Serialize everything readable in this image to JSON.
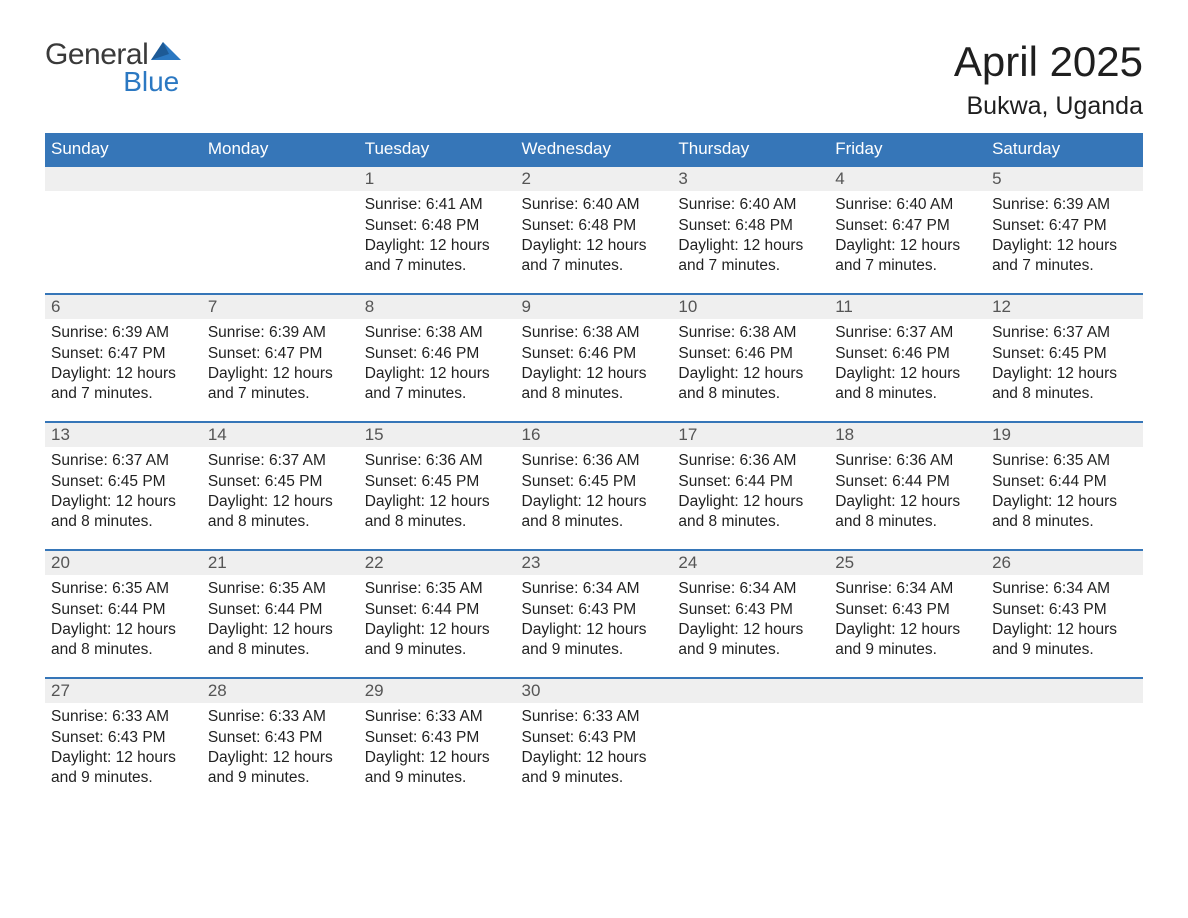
{
  "logo": {
    "word1": "General",
    "word2": "Blue",
    "kite_color": "#2b78c2"
  },
  "title": "April 2025",
  "subtitle": "Bukwa, Uganda",
  "colors": {
    "header_bg": "#3676b8",
    "header_text": "#ffffff",
    "daynum_bg": "#efefef",
    "row_divider": "#3676b8",
    "body_text": "#222222",
    "daynum_text": "#555555",
    "background": "#ffffff"
  },
  "typography": {
    "title_fontsize": 42,
    "subtitle_fontsize": 25,
    "dayheader_fontsize": 17,
    "daynum_fontsize": 17,
    "body_fontsize": 15.5
  },
  "day_headers": [
    "Sunday",
    "Monday",
    "Tuesday",
    "Wednesday",
    "Thursday",
    "Friday",
    "Saturday"
  ],
  "labels": {
    "sunrise": "Sunrise:",
    "sunset": "Sunset:",
    "daylight": "Daylight:"
  },
  "weeks": [
    [
      null,
      null,
      {
        "n": "1",
        "sunrise": "6:41 AM",
        "sunset": "6:48 PM",
        "daylight_l1": "12 hours",
        "daylight_l2": "and 7 minutes."
      },
      {
        "n": "2",
        "sunrise": "6:40 AM",
        "sunset": "6:48 PM",
        "daylight_l1": "12 hours",
        "daylight_l2": "and 7 minutes."
      },
      {
        "n": "3",
        "sunrise": "6:40 AM",
        "sunset": "6:48 PM",
        "daylight_l1": "12 hours",
        "daylight_l2": "and 7 minutes."
      },
      {
        "n": "4",
        "sunrise": "6:40 AM",
        "sunset": "6:47 PM",
        "daylight_l1": "12 hours",
        "daylight_l2": "and 7 minutes."
      },
      {
        "n": "5",
        "sunrise": "6:39 AM",
        "sunset": "6:47 PM",
        "daylight_l1": "12 hours",
        "daylight_l2": "and 7 minutes."
      }
    ],
    [
      {
        "n": "6",
        "sunrise": "6:39 AM",
        "sunset": "6:47 PM",
        "daylight_l1": "12 hours",
        "daylight_l2": "and 7 minutes."
      },
      {
        "n": "7",
        "sunrise": "6:39 AM",
        "sunset": "6:47 PM",
        "daylight_l1": "12 hours",
        "daylight_l2": "and 7 minutes."
      },
      {
        "n": "8",
        "sunrise": "6:38 AM",
        "sunset": "6:46 PM",
        "daylight_l1": "12 hours",
        "daylight_l2": "and 7 minutes."
      },
      {
        "n": "9",
        "sunrise": "6:38 AM",
        "sunset": "6:46 PM",
        "daylight_l1": "12 hours",
        "daylight_l2": "and 8 minutes."
      },
      {
        "n": "10",
        "sunrise": "6:38 AM",
        "sunset": "6:46 PM",
        "daylight_l1": "12 hours",
        "daylight_l2": "and 8 minutes."
      },
      {
        "n": "11",
        "sunrise": "6:37 AM",
        "sunset": "6:46 PM",
        "daylight_l1": "12 hours",
        "daylight_l2": "and 8 minutes."
      },
      {
        "n": "12",
        "sunrise": "6:37 AM",
        "sunset": "6:45 PM",
        "daylight_l1": "12 hours",
        "daylight_l2": "and 8 minutes."
      }
    ],
    [
      {
        "n": "13",
        "sunrise": "6:37 AM",
        "sunset": "6:45 PM",
        "daylight_l1": "12 hours",
        "daylight_l2": "and 8 minutes."
      },
      {
        "n": "14",
        "sunrise": "6:37 AM",
        "sunset": "6:45 PM",
        "daylight_l1": "12 hours",
        "daylight_l2": "and 8 minutes."
      },
      {
        "n": "15",
        "sunrise": "6:36 AM",
        "sunset": "6:45 PM",
        "daylight_l1": "12 hours",
        "daylight_l2": "and 8 minutes."
      },
      {
        "n": "16",
        "sunrise": "6:36 AM",
        "sunset": "6:45 PM",
        "daylight_l1": "12 hours",
        "daylight_l2": "and 8 minutes."
      },
      {
        "n": "17",
        "sunrise": "6:36 AM",
        "sunset": "6:44 PM",
        "daylight_l1": "12 hours",
        "daylight_l2": "and 8 minutes."
      },
      {
        "n": "18",
        "sunrise": "6:36 AM",
        "sunset": "6:44 PM",
        "daylight_l1": "12 hours",
        "daylight_l2": "and 8 minutes."
      },
      {
        "n": "19",
        "sunrise": "6:35 AM",
        "sunset": "6:44 PM",
        "daylight_l1": "12 hours",
        "daylight_l2": "and 8 minutes."
      }
    ],
    [
      {
        "n": "20",
        "sunrise": "6:35 AM",
        "sunset": "6:44 PM",
        "daylight_l1": "12 hours",
        "daylight_l2": "and 8 minutes."
      },
      {
        "n": "21",
        "sunrise": "6:35 AM",
        "sunset": "6:44 PM",
        "daylight_l1": "12 hours",
        "daylight_l2": "and 8 minutes."
      },
      {
        "n": "22",
        "sunrise": "6:35 AM",
        "sunset": "6:44 PM",
        "daylight_l1": "12 hours",
        "daylight_l2": "and 9 minutes."
      },
      {
        "n": "23",
        "sunrise": "6:34 AM",
        "sunset": "6:43 PM",
        "daylight_l1": "12 hours",
        "daylight_l2": "and 9 minutes."
      },
      {
        "n": "24",
        "sunrise": "6:34 AM",
        "sunset": "6:43 PM",
        "daylight_l1": "12 hours",
        "daylight_l2": "and 9 minutes."
      },
      {
        "n": "25",
        "sunrise": "6:34 AM",
        "sunset": "6:43 PM",
        "daylight_l1": "12 hours",
        "daylight_l2": "and 9 minutes."
      },
      {
        "n": "26",
        "sunrise": "6:34 AM",
        "sunset": "6:43 PM",
        "daylight_l1": "12 hours",
        "daylight_l2": "and 9 minutes."
      }
    ],
    [
      {
        "n": "27",
        "sunrise": "6:33 AM",
        "sunset": "6:43 PM",
        "daylight_l1": "12 hours",
        "daylight_l2": "and 9 minutes."
      },
      {
        "n": "28",
        "sunrise": "6:33 AM",
        "sunset": "6:43 PM",
        "daylight_l1": "12 hours",
        "daylight_l2": "and 9 minutes."
      },
      {
        "n": "29",
        "sunrise": "6:33 AM",
        "sunset": "6:43 PM",
        "daylight_l1": "12 hours",
        "daylight_l2": "and 9 minutes."
      },
      {
        "n": "30",
        "sunrise": "6:33 AM",
        "sunset": "6:43 PM",
        "daylight_l1": "12 hours",
        "daylight_l2": "and 9 minutes."
      },
      null,
      null,
      null
    ]
  ]
}
